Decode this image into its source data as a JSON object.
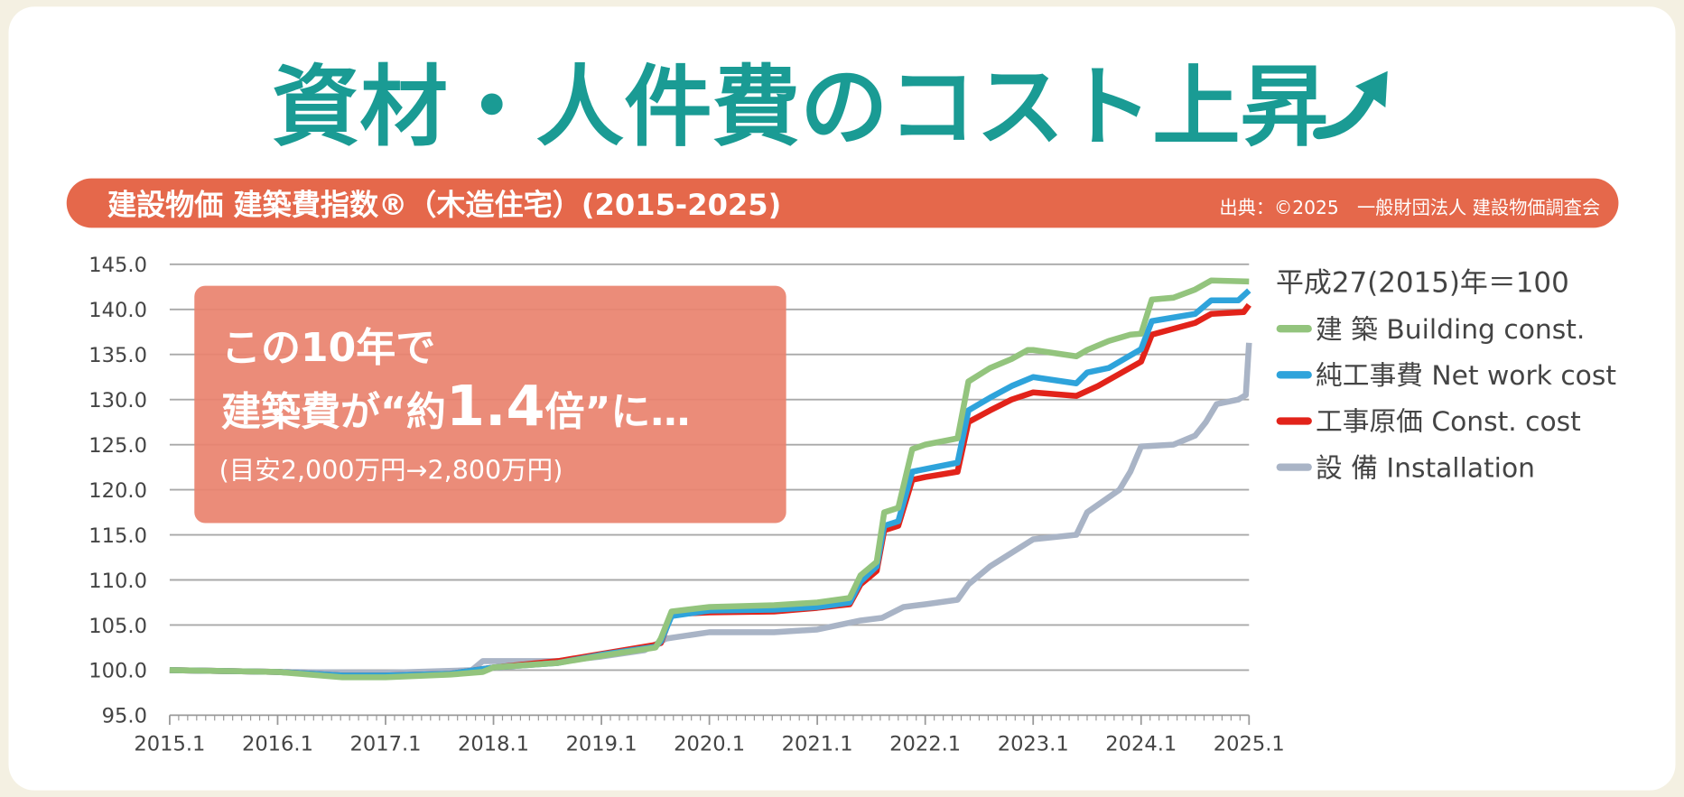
{
  "title": "資材・人件費のコスト上昇",
  "banner": {
    "heading": "建設物価 建築費指数®（木造住宅）(2015-2025)",
    "source": "出典：©2025　一般財団法人 建設物価調査会"
  },
  "callout": {
    "line1": "この10年で",
    "line2_prefix": "建築費が“約",
    "line2_big": "1.4",
    "line2_suffix": "倍”に…",
    "line3": "(目安2,000万円→2,800万円)"
  },
  "colors": {
    "title": "#1a9b94",
    "banner": "#e5684b",
    "callout": "#e9836f",
    "green": "#93c47d",
    "blue": "#2ea3db",
    "red": "#e2231a",
    "gray": "#a9b4c6"
  },
  "chart_data": {
    "type": "line",
    "title": "建設物価 建築費指数®（木造住宅）(2015-2025)",
    "base_note": "平成27(2015)年＝100",
    "xlabel": "",
    "ylabel": "",
    "xlim": [
      2015.0,
      2025.0
    ],
    "ylim": [
      95,
      145
    ],
    "y_ticks": [
      "95.0",
      "100.0",
      "105.0",
      "110.0",
      "115.0",
      "120.0",
      "125.0",
      "130.0",
      "135.0",
      "140.0",
      "145.0"
    ],
    "x_ticks": [
      "2015.1",
      "2016.1",
      "2017.1",
      "2018.1",
      "2019.1",
      "2020.1",
      "2021.1",
      "2022.1",
      "2023.1",
      "2024.1",
      "2025.1"
    ],
    "grid": true,
    "legend_position": "right",
    "series": [
      {
        "name": "建 築 Building const.",
        "color": "#93c47d",
        "x": [
          2015.0,
          2016.0,
          2016.6,
          2017.0,
          2017.6,
          2017.9,
          2018.0,
          2018.6,
          2019.0,
          2019.5,
          2019.55,
          2019.65,
          2020.0,
          2020.6,
          2021.0,
          2021.3,
          2021.4,
          2021.55,
          2021.62,
          2021.75,
          2021.88,
          2022.0,
          2022.3,
          2022.4,
          2022.6,
          2022.8,
          2022.95,
          2023.0,
          2023.4,
          2023.5,
          2023.7,
          2023.9,
          2024.0,
          2024.1,
          2024.3,
          2024.5,
          2024.65,
          2025.0
        ],
        "values": [
          100,
          99.8,
          99.2,
          99.2,
          99.5,
          99.8,
          100.3,
          100.8,
          101.6,
          102.5,
          103.5,
          106.5,
          107.0,
          107.2,
          107.5,
          108.0,
          110.5,
          112.0,
          117.5,
          118.0,
          124.5,
          125.0,
          125.7,
          132.0,
          133.5,
          134.5,
          135.5,
          135.5,
          134.8,
          135.5,
          136.5,
          137.2,
          137.3,
          141.1,
          141.3,
          142.2,
          143.2,
          143.1
        ]
      },
      {
        "name": "純工事費 Net work cost",
        "color": "#2ea3db",
        "x": [
          2015.0,
          2016.0,
          2016.6,
          2017.0,
          2017.6,
          2018.0,
          2018.6,
          2019.0,
          2019.5,
          2019.55,
          2019.65,
          2020.0,
          2020.6,
          2021.0,
          2021.3,
          2021.4,
          2021.55,
          2021.62,
          2021.75,
          2021.88,
          2022.0,
          2022.3,
          2022.4,
          2022.6,
          2022.8,
          2023.0,
          2023.4,
          2023.5,
          2023.7,
          2024.0,
          2024.1,
          2024.5,
          2024.65,
          2024.9,
          2025.0
        ],
        "values": [
          100,
          99.8,
          99.4,
          99.4,
          99.6,
          100.3,
          100.8,
          101.7,
          102.6,
          103.2,
          106.0,
          106.6,
          106.7,
          107.0,
          107.5,
          109.8,
          111.5,
          116.0,
          116.5,
          122.0,
          122.3,
          123.0,
          128.8,
          130.2,
          131.5,
          132.5,
          131.8,
          133.0,
          133.5,
          135.6,
          138.7,
          139.5,
          141.0,
          141.0,
          142.1
        ]
      },
      {
        "name": "工事原価 Const. cost",
        "color": "#e2231a",
        "x": [
          2015.0,
          2016.0,
          2016.6,
          2017.0,
          2017.6,
          2018.0,
          2018.6,
          2019.0,
          2019.5,
          2019.55,
          2019.65,
          2020.0,
          2020.6,
          2021.0,
          2021.3,
          2021.4,
          2021.55,
          2021.62,
          2021.75,
          2021.88,
          2022.0,
          2022.3,
          2022.4,
          2022.6,
          2022.8,
          2023.0,
          2023.4,
          2023.6,
          2024.0,
          2024.1,
          2024.5,
          2024.65,
          2024.95,
          2025.0
        ],
        "values": [
          100,
          99.8,
          99.4,
          99.4,
          99.6,
          100.3,
          101.0,
          101.8,
          102.8,
          103.0,
          106.2,
          106.4,
          106.5,
          106.9,
          107.3,
          109.5,
          111.0,
          115.5,
          116.0,
          121.1,
          121.4,
          122.0,
          127.5,
          128.8,
          130.0,
          130.8,
          130.4,
          131.5,
          134.2,
          137.2,
          138.5,
          139.5,
          139.7,
          140.5
        ]
      },
      {
        "name": "設 備 Installation",
        "color": "#a9b4c6",
        "x": [
          2015.0,
          2016.0,
          2017.0,
          2017.8,
          2017.9,
          2018.6,
          2019.0,
          2019.4,
          2019.6,
          2020.0,
          2020.6,
          2021.0,
          2021.4,
          2021.6,
          2021.8,
          2022.0,
          2022.3,
          2022.4,
          2022.6,
          2022.8,
          2023.0,
          2023.4,
          2023.5,
          2023.8,
          2023.9,
          2024.0,
          2024.3,
          2024.5,
          2024.6,
          2024.7,
          2024.9,
          2024.97,
          2025.0
        ],
        "values": [
          100,
          99.8,
          99.7,
          100.0,
          101.0,
          101.0,
          101.5,
          102.2,
          103.5,
          104.2,
          104.2,
          104.5,
          105.5,
          105.8,
          107.0,
          107.3,
          107.8,
          109.5,
          111.5,
          113.0,
          114.5,
          115.0,
          117.5,
          120.0,
          122.0,
          124.8,
          125.0,
          126.0,
          127.5,
          129.5,
          130.0,
          130.5,
          136.3
        ]
      }
    ]
  }
}
